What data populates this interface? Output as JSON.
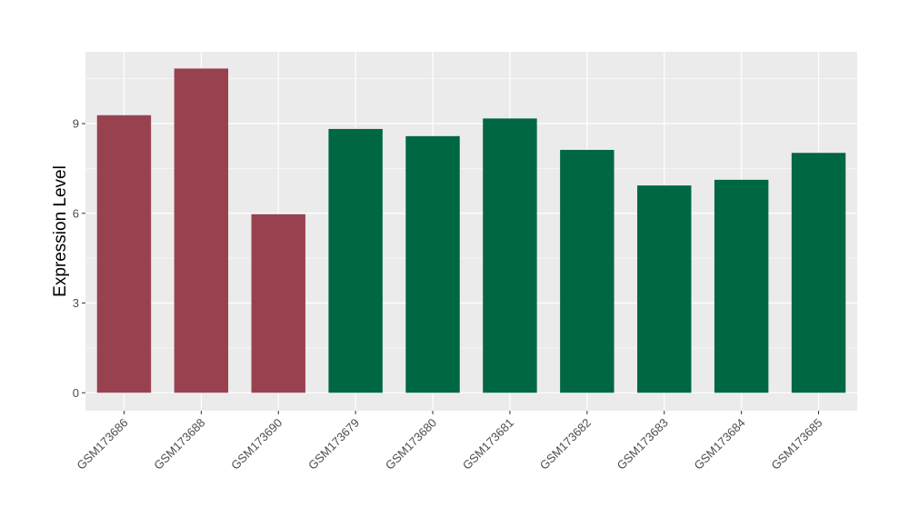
{
  "chart_data": {
    "type": "bar",
    "xlabel": "",
    "ylabel": "Expression Level",
    "ylim": [
      -0.6,
      11.4
    ],
    "yticks": [
      0,
      3,
      6,
      9
    ],
    "ytick_labels": [
      "0",
      "3",
      "6",
      "9"
    ],
    "grid": true,
    "legend": "none",
    "categories": [
      "GSM173686",
      "GSM173688",
      "GSM173690",
      "GSM173679",
      "GSM173680",
      "GSM173681",
      "GSM173682",
      "GSM173683",
      "GSM173684",
      "GSM173685"
    ],
    "values": [
      9.28,
      10.84,
      5.97,
      8.82,
      8.58,
      9.17,
      8.12,
      6.93,
      7.12,
      8.02
    ],
    "bar_colors": [
      "#99424f",
      "#99424f",
      "#99424f",
      "#006743",
      "#006743",
      "#006743",
      "#006743",
      "#006743",
      "#006743",
      "#006743"
    ],
    "panel_background": "#ebebeb",
    "grid_color": "#ffffff"
  }
}
